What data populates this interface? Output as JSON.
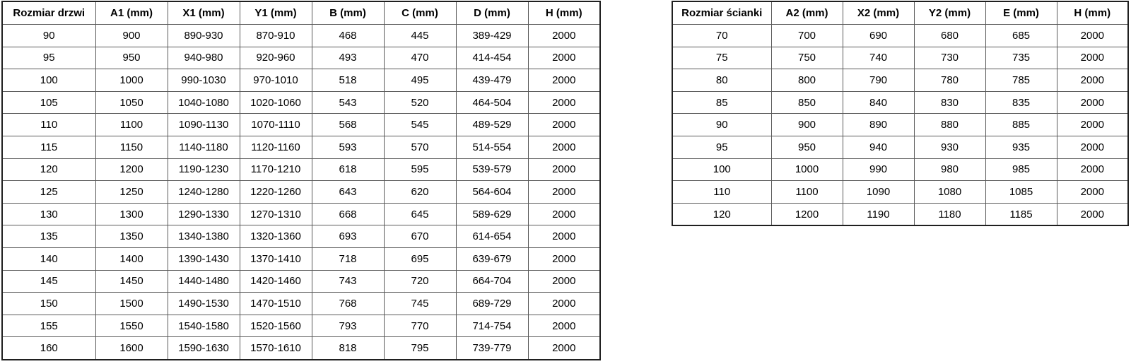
{
  "tables": [
    {
      "id": "door-size-table",
      "headers": [
        "Rozmiar drzwi",
        "A1 (mm)",
        "X1 (mm)",
        "Y1 (mm)",
        "B (mm)",
        "C (mm)",
        "D (mm)",
        "H (mm)"
      ],
      "rows": [
        [
          "90",
          "900",
          "890-930",
          "870-910",
          "468",
          "445",
          "389-429",
          "2000"
        ],
        [
          "95",
          "950",
          "940-980",
          "920-960",
          "493",
          "470",
          "414-454",
          "2000"
        ],
        [
          "100",
          "1000",
          "990-1030",
          "970-1010",
          "518",
          "495",
          "439-479",
          "2000"
        ],
        [
          "105",
          "1050",
          "1040-1080",
          "1020-1060",
          "543",
          "520",
          "464-504",
          "2000"
        ],
        [
          "110",
          "1100",
          "1090-1130",
          "1070-1110",
          "568",
          "545",
          "489-529",
          "2000"
        ],
        [
          "115",
          "1150",
          "1140-1180",
          "1120-1160",
          "593",
          "570",
          "514-554",
          "2000"
        ],
        [
          "120",
          "1200",
          "1190-1230",
          "1170-1210",
          "618",
          "595",
          "539-579",
          "2000"
        ],
        [
          "125",
          "1250",
          "1240-1280",
          "1220-1260",
          "643",
          "620",
          "564-604",
          "2000"
        ],
        [
          "130",
          "1300",
          "1290-1330",
          "1270-1310",
          "668",
          "645",
          "589-629",
          "2000"
        ],
        [
          "135",
          "1350",
          "1340-1380",
          "1320-1360",
          "693",
          "670",
          "614-654",
          "2000"
        ],
        [
          "140",
          "1400",
          "1390-1430",
          "1370-1410",
          "718",
          "695",
          "639-679",
          "2000"
        ],
        [
          "145",
          "1450",
          "1440-1480",
          "1420-1460",
          "743",
          "720",
          "664-704",
          "2000"
        ],
        [
          "150",
          "1500",
          "1490-1530",
          "1470-1510",
          "768",
          "745",
          "689-729",
          "2000"
        ],
        [
          "155",
          "1550",
          "1540-1580",
          "1520-1560",
          "793",
          "770",
          "714-754",
          "2000"
        ],
        [
          "160",
          "1600",
          "1590-1630",
          "1570-1610",
          "818",
          "795",
          "739-779",
          "2000"
        ]
      ]
    },
    {
      "id": "wall-size-table",
      "headers": [
        "Rozmiar ścianki",
        "A2 (mm)",
        "X2 (mm)",
        "Y2 (mm)",
        "E (mm)",
        "H (mm)"
      ],
      "rows": [
        [
          "70",
          "700",
          "690",
          "680",
          "685",
          "2000"
        ],
        [
          "75",
          "750",
          "740",
          "730",
          "735",
          "2000"
        ],
        [
          "80",
          "800",
          "790",
          "780",
          "785",
          "2000"
        ],
        [
          "85",
          "850",
          "840",
          "830",
          "835",
          "2000"
        ],
        [
          "90",
          "900",
          "890",
          "880",
          "885",
          "2000"
        ],
        [
          "95",
          "950",
          "940",
          "930",
          "935",
          "2000"
        ],
        [
          "100",
          "1000",
          "990",
          "980",
          "985",
          "2000"
        ],
        [
          "110",
          "1100",
          "1090",
          "1080",
          "1085",
          "2000"
        ],
        [
          "120",
          "1200",
          "1190",
          "1180",
          "1185",
          "2000"
        ]
      ]
    }
  ],
  "colors": {
    "background": "#ffffff",
    "text": "#000000",
    "border_outer": "#1f1f1f",
    "border_inner": "#595959"
  }
}
